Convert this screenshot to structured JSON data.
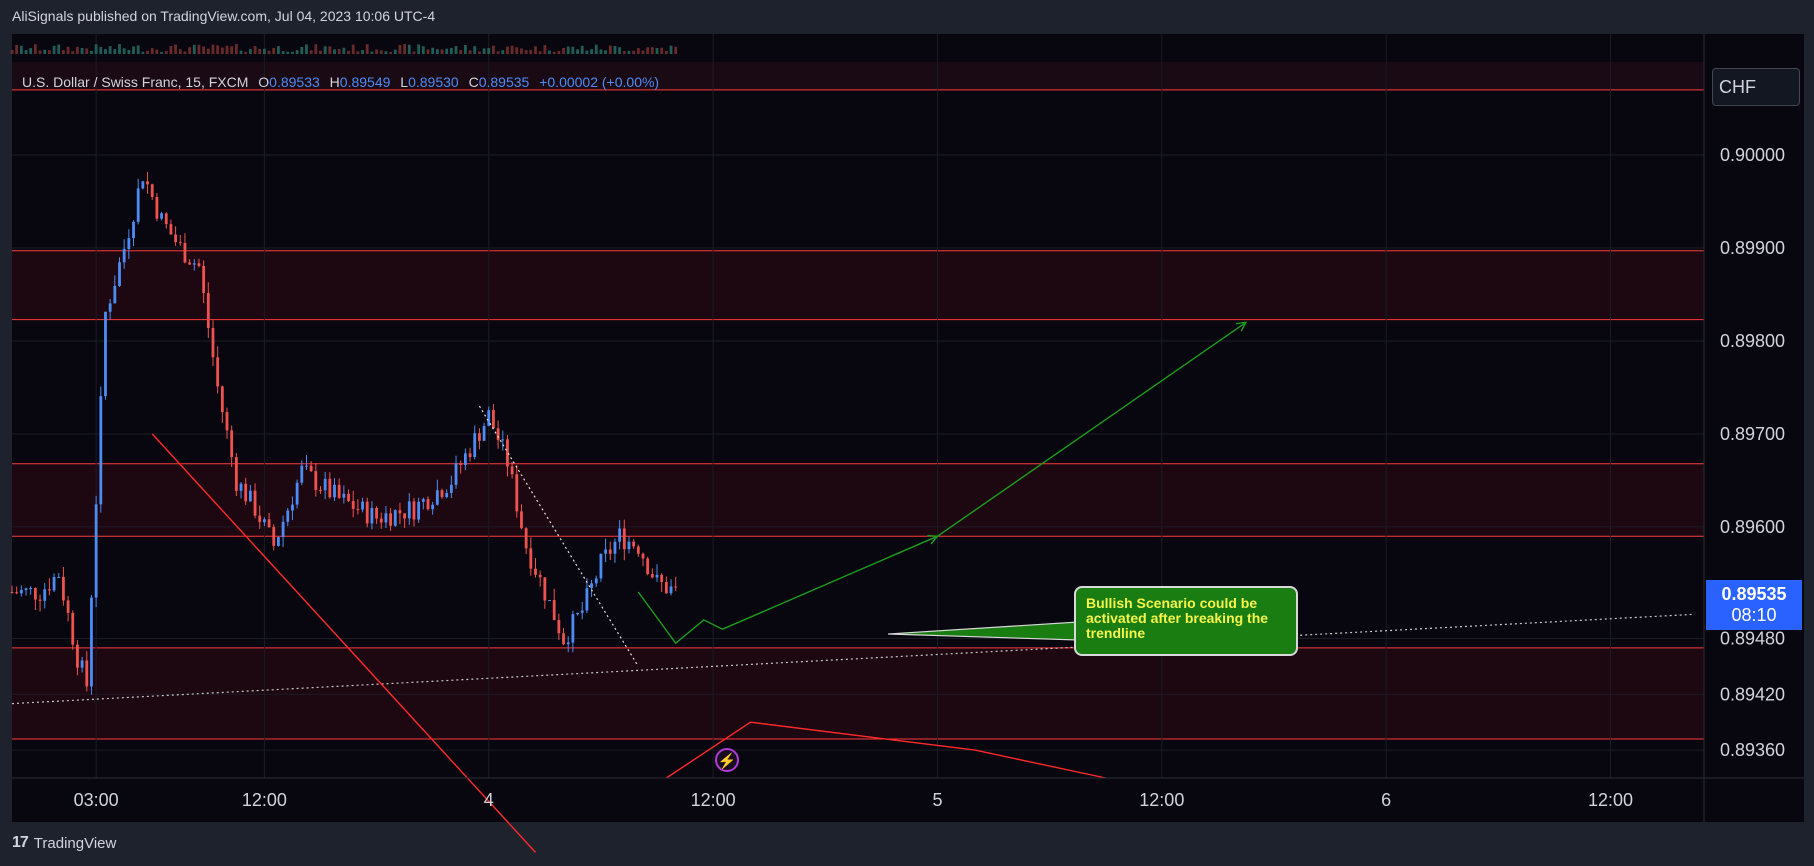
{
  "header": {
    "publisher_line": "AliSignals published on TradingView.com, Jul 04, 2023 10:06 UTC-4"
  },
  "legend": {
    "symbol": "U.S. Dollar / Swiss Franc, 15, FXCM",
    "open_label": "O",
    "open": "0.89533",
    "high_label": "H",
    "high": "0.89549",
    "low_label": "L",
    "low": "0.89530",
    "close_label": "C",
    "close": "0.89535",
    "change": "+0.00002 (+0.00%)"
  },
  "currency": "CHF",
  "price_tag": {
    "price": "0.89535",
    "countdown": "08:10"
  },
  "callout": {
    "text": "Bullish Scenario could be activated after breaking the trendline"
  },
  "footer": {
    "brand": "TradingView"
  },
  "colors": {
    "up": "#4d8cf5",
    "down": "#ef5350",
    "zone": "#ff3b3b",
    "bull_path": "#1b9e1b",
    "bear_path": "#ff2a2a"
  },
  "chart_data": {
    "type": "candlestick",
    "timeframe": "15",
    "y_ticks": [
      0.9,
      0.899,
      0.898,
      0.897,
      0.896,
      0.8948,
      0.8942,
      0.8936
    ],
    "y_tick_labels": [
      "0.90000",
      "0.89900",
      "0.89800",
      "0.89700",
      "0.89600",
      "0.89480",
      "0.89420",
      "0.89360"
    ],
    "x_tick_labels": [
      "03:00",
      "12:00",
      "4",
      "12:00",
      "5",
      "12:00",
      "6",
      "12:00"
    ],
    "x_ticks_hours": [
      3,
      12,
      24,
      36,
      48,
      60,
      72,
      84
    ],
    "ylim": [
      0.8933,
      0.901
    ],
    "xlim_hours": [
      -1.5,
      89
    ],
    "resistance_support_lines": [
      0.9007,
      0.89897,
      0.89823,
      0.89668,
      0.8959,
      0.8947,
      0.89372
    ],
    "zones": [
      [
        0.89897,
        0.89823
      ],
      [
        0.89668,
        0.8959
      ],
      [
        0.8947,
        0.89372
      ]
    ],
    "candles_sample_hours": [
      -1.5,
      0.0,
      1.0,
      2.0,
      2.5,
      3.0,
      3.5,
      4.5,
      5.5,
      6.5,
      7.5,
      8.5,
      9.5,
      10.5,
      11.5,
      12.5,
      14.0,
      16.0,
      18.0,
      20.0,
      22.0,
      24.0,
      25.0,
      26.0,
      27.0,
      28.0,
      29.0,
      30.0,
      31.0,
      32.0,
      33.0,
      34.0
    ],
    "candles_sample_close": [
      0.8953,
      0.8953,
      0.8955,
      0.8946,
      0.8943,
      0.8963,
      0.8983,
      0.899,
      0.8998,
      0.8993,
      0.899,
      0.8988,
      0.8975,
      0.8965,
      0.8962,
      0.8958,
      0.8966,
      0.8963,
      0.8961,
      0.8962,
      0.8965,
      0.8972,
      0.8967,
      0.8958,
      0.8953,
      0.8948,
      0.8951,
      0.8956,
      0.8959,
      0.8958,
      0.8954,
      0.8953
    ],
    "trendline_up_dotted": [
      [
        -1.5,
        0.8941
      ],
      [
        88.5,
        0.89506
      ]
    ],
    "trendline_down_dotted": [
      [
        23.5,
        0.8973
      ],
      [
        32.0,
        0.8945
      ]
    ],
    "bear_line_red": [
      [
        6.0,
        0.897
      ],
      [
        26.5,
        0.8925
      ]
    ],
    "bull_path": [
      [
        32.0,
        0.8953
      ],
      [
        34.0,
        0.89475
      ],
      [
        35.5,
        0.895
      ],
      [
        36.5,
        0.8949
      ],
      [
        48.0,
        0.8959
      ],
      [
        64.5,
        0.8982
      ]
    ],
    "bear_path": [
      [
        33.5,
        0.8933
      ],
      [
        38.0,
        0.8939
      ],
      [
        50.0,
        0.8936
      ],
      [
        57.0,
        0.8933
      ]
    ]
  }
}
